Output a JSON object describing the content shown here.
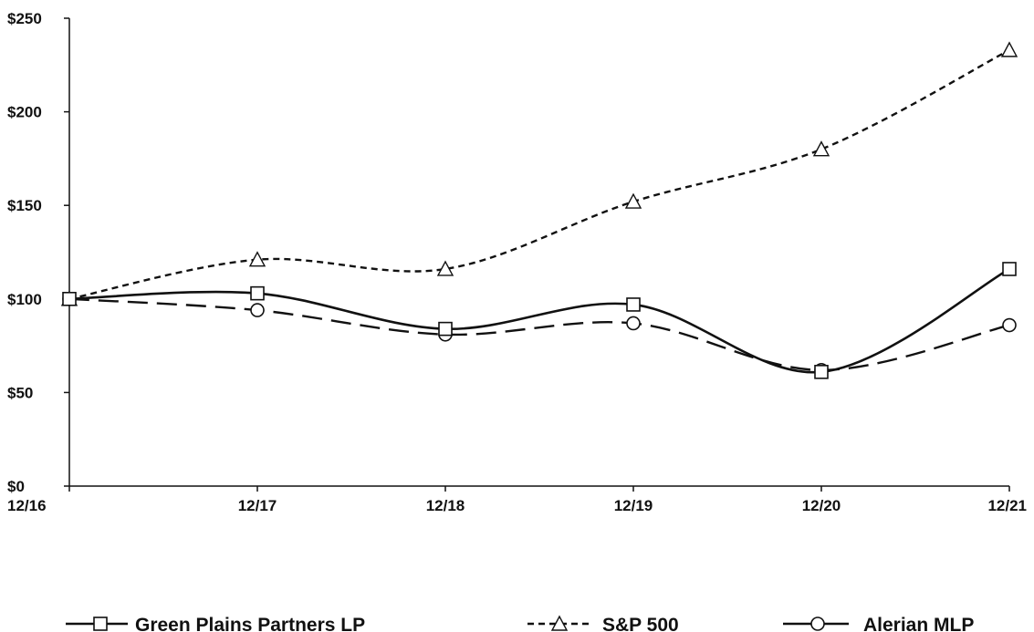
{
  "chart_data": {
    "type": "line",
    "categories": [
      "12/16",
      "12/17",
      "12/18",
      "12/19",
      "12/20",
      "12/21"
    ],
    "y_ticks": [
      "$0",
      "$50",
      "$100",
      "$150",
      "$200",
      "$250"
    ],
    "ylim": [
      0,
      250
    ],
    "grid": false,
    "legend_position": "bottom",
    "series": [
      {
        "name": "Green Plains Partners LP",
        "marker": "square",
        "dash": "solid",
        "values": [
          100,
          103,
          84,
          97,
          61,
          116
        ]
      },
      {
        "name": "S&P 500",
        "marker": "triangle",
        "dash": "short-dash",
        "values": [
          100,
          121,
          116,
          152,
          180,
          233
        ]
      },
      {
        "name": "Alerian MLP",
        "marker": "circle",
        "dash": "long-dash",
        "values": [
          100,
          94,
          81,
          87,
          62,
          86
        ]
      }
    ],
    "colors": {
      "line": "#111111",
      "marker_fill": "#ffffff"
    }
  }
}
